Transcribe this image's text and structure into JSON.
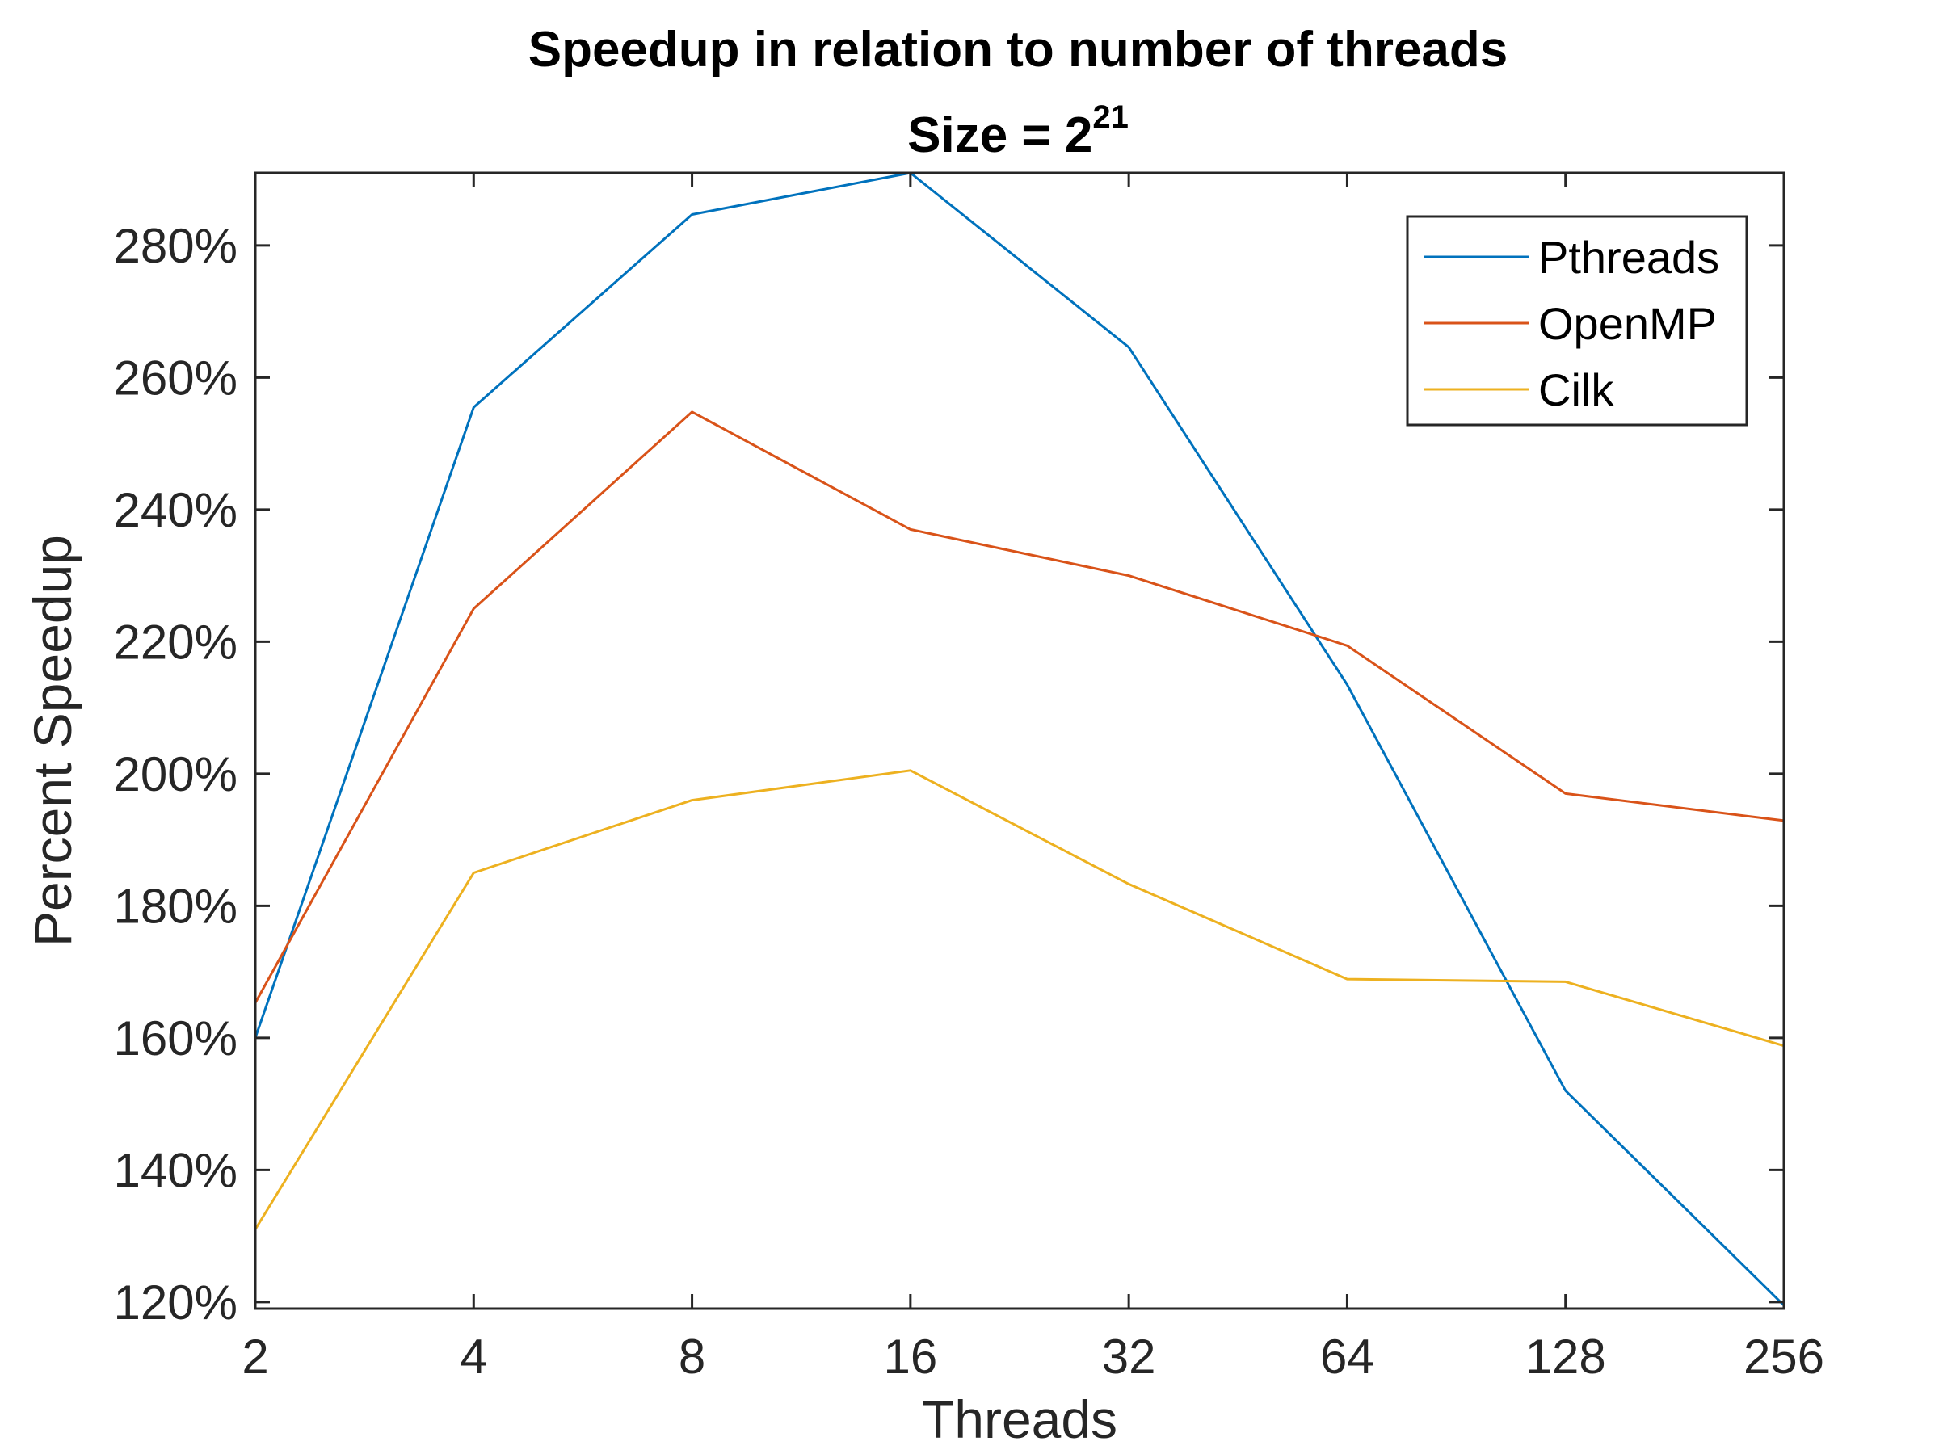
{
  "chart_data": {
    "type": "line",
    "title": "Speedup in relation to number of threads",
    "subtitle_base": "Size = 2",
    "subtitle_exponent": "21",
    "xlabel": "Threads",
    "ylabel": "Percent Speedup",
    "x_scale": "log2",
    "categories": [
      "2",
      "4",
      "8",
      "16",
      "32",
      "64",
      "128",
      "256"
    ],
    "x": [
      2,
      4,
      8,
      16,
      32,
      64,
      128,
      256
    ],
    "ylim": [
      119,
      291
    ],
    "yticks": [
      120,
      140,
      160,
      180,
      200,
      220,
      240,
      260,
      280
    ],
    "ytick_labels": [
      "120%",
      "140%",
      "160%",
      "180%",
      "200%",
      "220%",
      "240%",
      "260%",
      "280%"
    ],
    "grid": false,
    "legend_position": "top-right",
    "series": [
      {
        "name": "Pthreads",
        "color": "#0072BD",
        "values": [
          160,
          255.5,
          284.7,
          291,
          264.6,
          213.5,
          152,
          119.5
        ]
      },
      {
        "name": "OpenMP",
        "color": "#D95319",
        "values": [
          165.3,
          225,
          254.8,
          237,
          230,
          219.4,
          197,
          192.9
        ]
      },
      {
        "name": "Cilk",
        "color": "#EDB120",
        "values": [
          131,
          185,
          196,
          200.5,
          183.3,
          168.9,
          168.5,
          158.8
        ]
      }
    ]
  }
}
